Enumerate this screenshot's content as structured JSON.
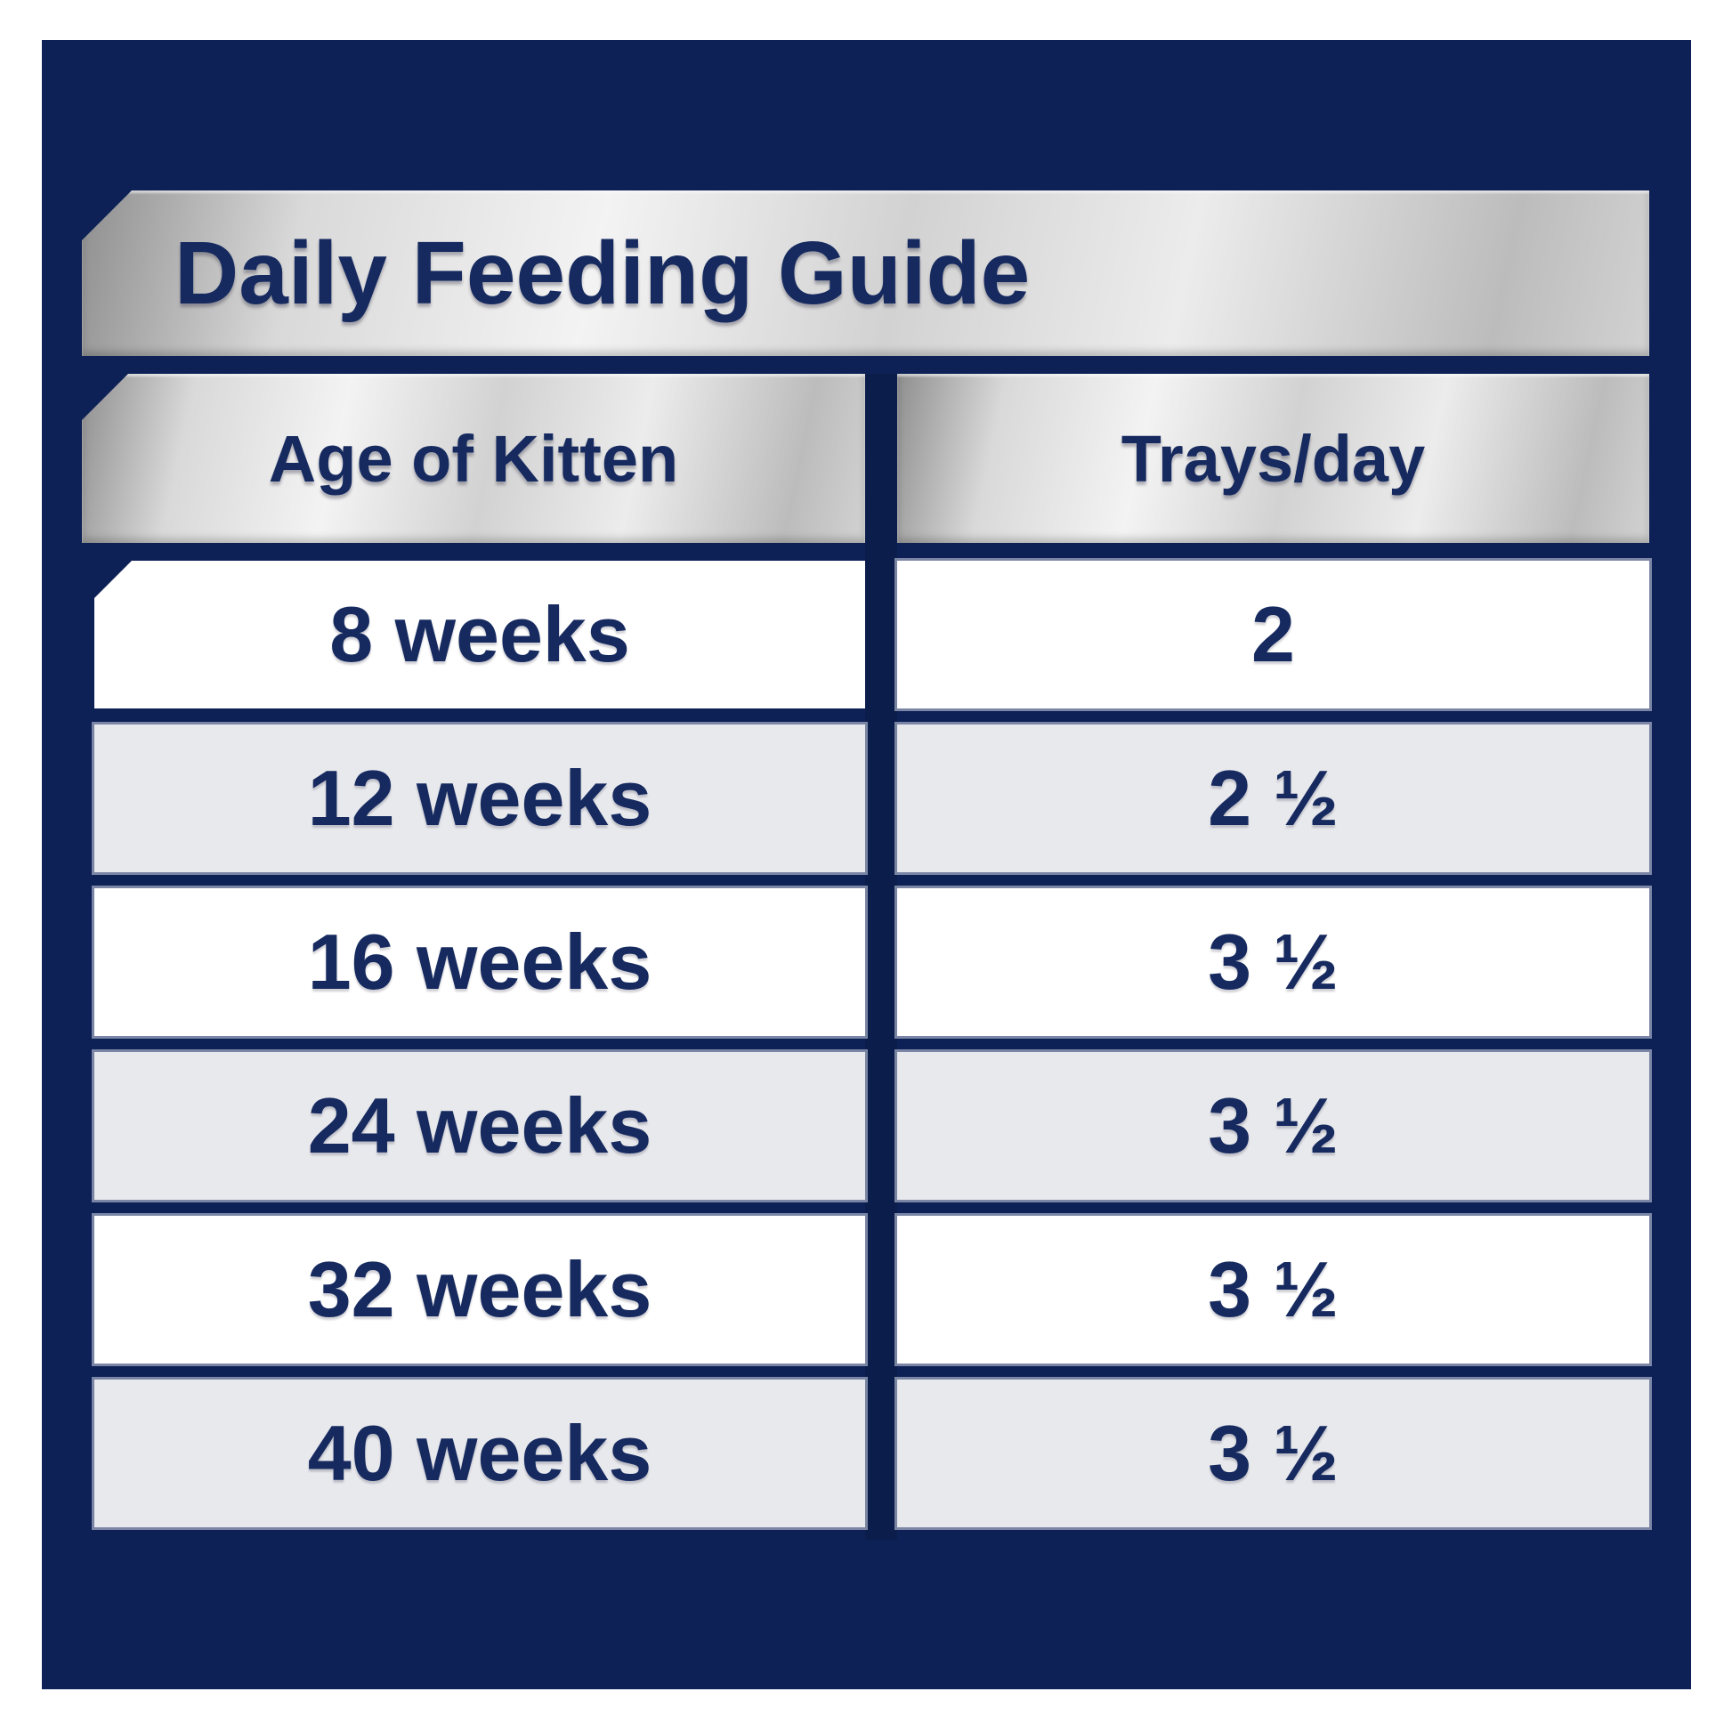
{
  "title": "Daily Feeding Guide",
  "chart_data": {
    "type": "table",
    "title": "Daily Feeding Guide",
    "columns": [
      "Age of Kitten",
      "Trays/day"
    ],
    "rows": [
      {
        "age": "8 weeks",
        "trays": "2"
      },
      {
        "age": "12 weeks",
        "trays": "2 ½"
      },
      {
        "age": "16 weeks",
        "trays": "3 ½"
      },
      {
        "age": "24 weeks",
        "trays": "3 ½"
      },
      {
        "age": "32 weeks",
        "trays": "3 ½"
      },
      {
        "age": "40 weeks",
        "trays": "3 ½"
      }
    ]
  },
  "colors": {
    "panel_navy": "#0e2156",
    "divider_navy": "#0b1d4b",
    "text_navy": "#162a5f",
    "row_white": "#ffffff",
    "row_gray": "#e8e9ed",
    "silver_light": "#f3f3f3",
    "silver_dark": "#8f8f8f"
  }
}
